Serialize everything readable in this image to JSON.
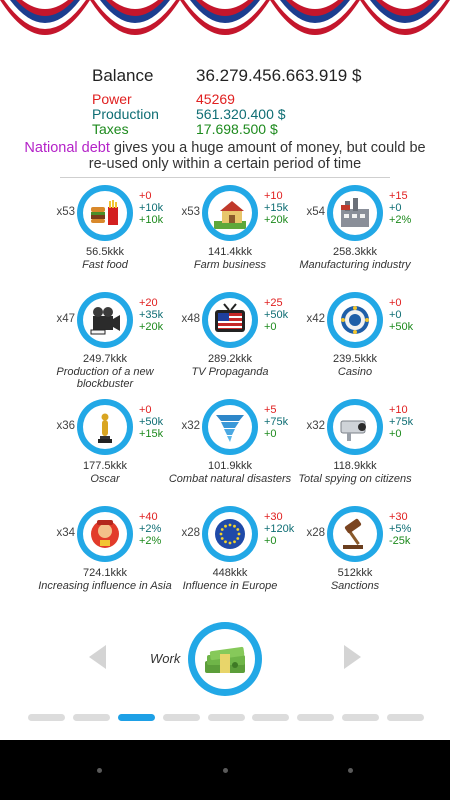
{
  "stats": {
    "balance_label": "Balance",
    "balance_value": "36.279.456.663.919 $",
    "power_label": "Power",
    "power_value": "45269",
    "production_label": "Production",
    "production_value": "561.320.400 $",
    "taxes_label": "Taxes",
    "taxes_value": "17.698.500 $"
  },
  "info": {
    "highlight": "National debt",
    "text": " gives you a huge amount of money, but could be re-used only within a certain period of time"
  },
  "colors": {
    "accent": "#22a8e6",
    "red": "#e02020",
    "teal": "#0f6e74",
    "green": "#1d8a1d",
    "highlight": "#b422c8"
  },
  "items": [
    {
      "count": "x53",
      "d1": "+0",
      "d2": "+10k",
      "d3": "+10k",
      "price": "56.5kkk",
      "name": "Fast food",
      "icon": "fast-food-icon"
    },
    {
      "count": "x53",
      "d1": "+10",
      "d2": "+15k",
      "d3": "+20k",
      "price": "141.4kkk",
      "name": "Farm business",
      "icon": "farm-icon"
    },
    {
      "count": "x54",
      "d1": "+15",
      "d2": "+0",
      "d3": "+2%",
      "price": "258.3kkk",
      "name": "Manufacturing industry",
      "icon": "factory-icon"
    },
    {
      "count": "x47",
      "d1": "+20",
      "d2": "+35k",
      "d3": "+20k",
      "price": "249.7kkk",
      "name": "Production of a new blockbuster",
      "icon": "movie-camera-icon"
    },
    {
      "count": "x48",
      "d1": "+25",
      "d2": "+50k",
      "d3": "+0",
      "price": "289.2kkk",
      "name": "TV Propaganda",
      "icon": "tv-icon"
    },
    {
      "count": "x42",
      "d1": "+0",
      "d2": "+0",
      "d3": "+50k",
      "price": "239.5kkk",
      "name": "Casino",
      "icon": "casino-icon"
    },
    {
      "count": "x36",
      "d1": "+0",
      "d2": "+50k",
      "d3": "+15k",
      "price": "177.5kkk",
      "name": "Oscar",
      "icon": "oscar-icon"
    },
    {
      "count": "x32",
      "d1": "+5",
      "d2": "+75k",
      "d3": "+0",
      "price": "101.9kkk",
      "name": "Combat natural disasters",
      "icon": "tornado-icon"
    },
    {
      "count": "x32",
      "d1": "+10",
      "d2": "+75k",
      "d3": "+0",
      "price": "118.9kkk",
      "name": "Total spying on citizens",
      "icon": "camera-icon"
    },
    {
      "count": "x34",
      "d1": "+40",
      "d2": "+2%",
      "d3": "+2%",
      "price": "724.1kkk",
      "name": "Increasing influence in Asia",
      "icon": "asia-icon"
    },
    {
      "count": "x28",
      "d1": "+30",
      "d2": "+120k",
      "d3": "+0",
      "price": "448kkk",
      "name": "Influence in Europe",
      "icon": "eu-flag-icon"
    },
    {
      "count": "x28",
      "d1": "+30",
      "d2": "+5%",
      "d3": "-25k",
      "price": "512kkk",
      "name": "Sanctions",
      "icon": "gavel-icon"
    }
  ],
  "work": {
    "label": "Work",
    "icon": "money-stack-icon"
  },
  "pages": {
    "total": 9,
    "active": 3
  }
}
